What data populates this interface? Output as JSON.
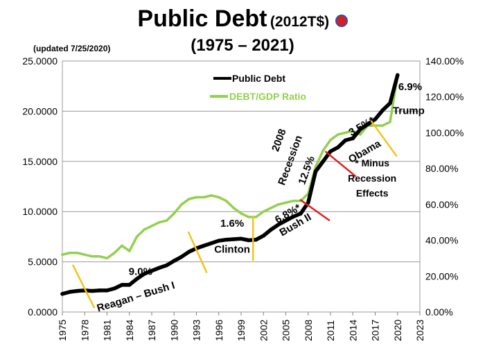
{
  "title": "Public Debt",
  "title_unit": "(2012T$)",
  "subtitle": "(1975 – 2021)",
  "updated": "(updated  7/25/2020)",
  "colors": {
    "debt": "#000000",
    "ratio": "#92d050",
    "red": "#e02020",
    "yellow": "#f5c21b",
    "grid": "#9a9a9a"
  },
  "chart_data": {
    "type": "line",
    "xlim": [
      1975,
      2023
    ],
    "ylim_left": [
      0,
      25
    ],
    "ylim_right": [
      0,
      140
    ],
    "x_ticks": [
      "1975",
      "1978",
      "1981",
      "1984",
      "1987",
      "1990",
      "1993",
      "1996",
      "1999",
      "2002",
      "2005",
      "2008",
      "2011",
      "2014",
      "2017",
      "2020",
      "2023"
    ],
    "y_left_ticks": [
      "0.0000",
      "5.0000",
      "10.0000",
      "15.0000",
      "20.0000",
      "25.0000"
    ],
    "y_right_ticks": [
      "0.00%",
      "20.00%",
      "40.00%",
      "60.00%",
      "80.00%",
      "100.00%",
      "120.00%",
      "140.00%"
    ],
    "grid": "horizontal",
    "legend_position": "top-center",
    "series": [
      {
        "name": "Public Debt",
        "axis": "left",
        "x": [
          1975,
          1976,
          1977,
          1978,
          1979,
          1980,
          1981,
          1982,
          1983,
          1984,
          1985,
          1986,
          1987,
          1988,
          1989,
          1990,
          1991,
          1992,
          1993,
          1994,
          1995,
          1996,
          1997,
          1998,
          1999,
          2000,
          2001,
          2002,
          2003,
          2004,
          2005,
          2006,
          2007,
          2008,
          2009,
          2010,
          2011,
          2012,
          2013,
          2014,
          2015,
          2016,
          2017,
          2018,
          2019,
          2020
        ],
        "values": [
          1.8,
          2.0,
          2.1,
          2.15,
          2.1,
          2.15,
          2.15,
          2.35,
          2.7,
          2.7,
          3.3,
          3.8,
          4.1,
          4.4,
          4.65,
          5.1,
          5.5,
          6.0,
          6.35,
          6.6,
          6.85,
          7.1,
          7.2,
          7.25,
          7.3,
          7.15,
          7.2,
          7.6,
          8.2,
          8.7,
          9.1,
          9.5,
          9.8,
          10.9,
          14.0,
          15.0,
          16.0,
          16.4,
          17.1,
          17.3,
          18.2,
          18.7,
          19.2,
          20.1,
          20.8,
          23.6
        ]
      },
      {
        "name": "DEBT/GDP Ratio",
        "axis": "right",
        "x": [
          1975,
          1976,
          1977,
          1978,
          1979,
          1980,
          1981,
          1982,
          1983,
          1984,
          1985,
          1986,
          1987,
          1988,
          1989,
          1990,
          1991,
          1992,
          1993,
          1994,
          1995,
          1996,
          1997,
          1998,
          1999,
          2000,
          2001,
          2002,
          2003,
          2004,
          2005,
          2006,
          2007,
          2008,
          2009,
          2010,
          2011,
          2012,
          2013,
          2014,
          2015,
          2016,
          2017,
          2018,
          2019,
          2020
        ],
        "values": [
          32,
          33,
          33,
          32,
          31,
          31,
          30,
          33,
          37,
          34,
          42,
          46,
          48,
          50,
          51,
          55,
          60,
          63,
          64,
          64,
          65,
          64,
          62,
          58,
          55,
          53,
          53,
          56,
          58,
          60,
          61,
          62,
          62,
          66,
          81,
          90,
          96,
          99,
          100,
          101,
          99,
          104,
          104,
          104,
          106,
          132
        ]
      }
    ],
    "annotations": [
      {
        "text": "9.0%",
        "x": 1985.5,
        "y": 3.7,
        "color": "#000000",
        "size": 15,
        "rotate": 0
      },
      {
        "text": "Reagan – Bush I",
        "x": 1985,
        "y": 1.2,
        "color": "#000000",
        "size": 15,
        "rotate": -17
      },
      {
        "text": "1.6%",
        "x": 1997.8,
        "y": 8.5,
        "color": "#000000",
        "size": 15,
        "rotate": 0
      },
      {
        "text": "Clinton",
        "x": 1997.8,
        "y": 5.9,
        "color": "#000000",
        "size": 15,
        "rotate": 0
      },
      {
        "text": "6.8%*",
        "x": 2005.5,
        "y": 9.5,
        "color": "#000000",
        "size": 15,
        "rotate": -30
      },
      {
        "text": "Bush II",
        "x": 2006.5,
        "y": 8.4,
        "color": "#000000",
        "size": 15,
        "rotate": -30
      },
      {
        "text": "2008",
        "x": 2004.5,
        "y": 17.0,
        "color": "#e02020",
        "size": 15,
        "rotate": -70
      },
      {
        "text": "Recession",
        "x": 2006.0,
        "y": 15.0,
        "color": "#e02020",
        "size": 15,
        "rotate": -70
      },
      {
        "text": "12.5%",
        "x": 2008.2,
        "y": 14.0,
        "color": "#e02020",
        "size": 15,
        "rotate": -70
      },
      {
        "text": "3.5%*",
        "x": 2015.4,
        "y": 18.2,
        "color": "#000000",
        "size": 15,
        "rotate": -30
      },
      {
        "text": "Obama",
        "x": 2015.8,
        "y": 15.7,
        "color": "#000000",
        "size": 15,
        "rotate": -30
      },
      {
        "text": "6.9%",
        "x": 2021.7,
        "y": 22.1,
        "color": "#000000",
        "size": 15,
        "rotate": 0
      },
      {
        "text": "Trump",
        "x": 2021.5,
        "y": 19.7,
        "color": "#000000",
        "size": 15,
        "rotate": 0
      },
      {
        "text": "* Minus",
        "x": 2016.6,
        "y": 14.5,
        "color": "#000000",
        "size": 14,
        "rotate": 0
      },
      {
        "text": "Recession",
        "x": 2016.6,
        "y": 13.0,
        "color": "#000000",
        "size": 14,
        "rotate": 0
      },
      {
        "text": "Effects",
        "x": 2016.6,
        "y": 11.5,
        "color": "#000000",
        "size": 14,
        "rotate": 0
      }
    ],
    "dividers": [
      {
        "color": "yellow",
        "x1": 1976.4,
        "y1": 4.7,
        "x2": 1979.3,
        "y2": 0.4
      },
      {
        "color": "yellow",
        "x1": 1991.9,
        "y1": 8.0,
        "x2": 1994.4,
        "y2": 3.9
      },
      {
        "color": "yellow",
        "x1": 2000.6,
        "y1": 9.6,
        "x2": 2000.6,
        "y2": 5.1
      },
      {
        "color": "red",
        "x1": 2006.9,
        "y1": 11.2,
        "x2": 2010.9,
        "y2": 9.1
      },
      {
        "color": "red",
        "x1": 2010.3,
        "y1": 16.0,
        "x2": 2014.4,
        "y2": 13.5
      },
      {
        "color": "yellow",
        "x1": 2016.4,
        "y1": 19.1,
        "x2": 2019.9,
        "y2": 15.5
      }
    ]
  }
}
